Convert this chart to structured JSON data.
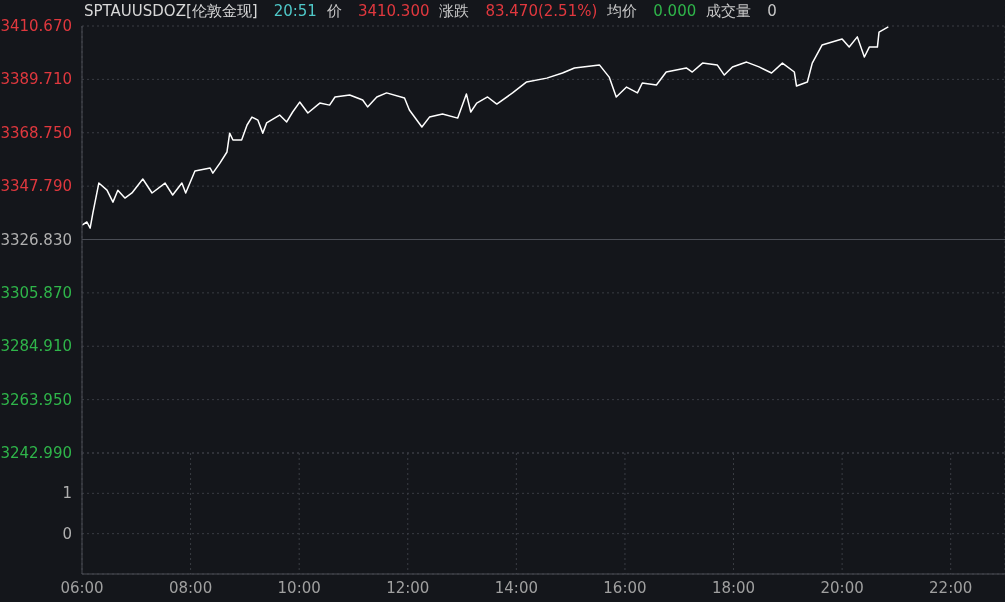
{
  "chart_data": [
    {
      "type": "line",
      "title": "SPTAUUSDOZ[伦敦金现]",
      "annotations": [
        "20:51",
        "价",
        "3410.300",
        "涨跌",
        "83.470(2.51%)",
        "均价",
        "0.000",
        "成交量",
        "0"
      ],
      "x": [
        6.0,
        6.09,
        6.15,
        6.2,
        6.31,
        6.46,
        6.57,
        6.66,
        6.79,
        6.92,
        7.12,
        7.29,
        7.53,
        7.67,
        7.84,
        7.91,
        8.08,
        8.36,
        8.41,
        8.54,
        8.67,
        8.72,
        8.78,
        8.94,
        9.04,
        9.13,
        9.24,
        9.33,
        9.4,
        9.64,
        9.77,
        9.88,
        10.01,
        10.16,
        10.38,
        10.56,
        10.66,
        10.93,
        11.17,
        11.26,
        11.43,
        11.61,
        11.94,
        12.03,
        12.26,
        12.4,
        12.64,
        12.92,
        13.08,
        13.16,
        13.27,
        13.47,
        13.64,
        13.93,
        14.19,
        14.56,
        14.85,
        15.07,
        15.53,
        15.71,
        15.84,
        16.03,
        16.23,
        16.32,
        16.58,
        16.76,
        17.13,
        17.24,
        17.43,
        17.7,
        17.83,
        17.98,
        18.24,
        18.47,
        18.7,
        18.9,
        19.12,
        19.16,
        19.36,
        19.45,
        19.63,
        20.0,
        20.13,
        20.28,
        20.41,
        20.5,
        20.65,
        20.68,
        20.85
      ],
      "series": [
        {
          "color": "#ffffff",
          "values": [
            3332.5,
            3333.7,
            3331.3,
            3337.2,
            3349.0,
            3346.2,
            3341.5,
            3346.2,
            3343.1,
            3345.1,
            3350.6,
            3345.1,
            3349.0,
            3344.3,
            3349.0,
            3345.1,
            3353.7,
            3354.9,
            3352.9,
            3356.8,
            3361.2,
            3368.6,
            3365.9,
            3365.9,
            3371.8,
            3374.9,
            3373.7,
            3368.6,
            3372.6,
            3375.7,
            3373.0,
            3376.9,
            3380.8,
            3376.5,
            3380.4,
            3379.6,
            3382.8,
            3383.6,
            3381.6,
            3378.9,
            3382.8,
            3384.4,
            3382.4,
            3377.7,
            3371.0,
            3374.9,
            3376.1,
            3374.5,
            3384.0,
            3376.9,
            3380.4,
            3382.8,
            3380.0,
            3384.4,
            3388.7,
            3390.2,
            3392.2,
            3394.2,
            3395.4,
            3390.6,
            3382.8,
            3386.7,
            3384.4,
            3388.3,
            3387.5,
            3392.6,
            3394.2,
            3392.6,
            3396.1,
            3395.4,
            3391.4,
            3394.6,
            3396.5,
            3394.6,
            3392.2,
            3396.1,
            3392.6,
            3387.1,
            3388.7,
            3396.1,
            3403.2,
            3405.6,
            3402.4,
            3406.4,
            3398.5,
            3402.4,
            3402.4,
            3408.3,
            3410.3
          ]
        }
      ],
      "xlim": [
        6,
        23
      ],
      "xticks": [
        {
          "value": 6,
          "label": null
        },
        {
          "value": 8,
          "label": null
        },
        {
          "value": 10,
          "label": null
        },
        {
          "value": 12,
          "label": null
        },
        {
          "value": 14,
          "label": null
        },
        {
          "value": 16,
          "label": null
        },
        {
          "value": 18,
          "label": null
        },
        {
          "value": 20,
          "label": null
        },
        {
          "value": 22,
          "label": null
        }
      ],
      "ylim": [
        3242.99,
        3410.67
      ],
      "yticks": [
        {
          "value": 3242.99,
          "label": "3242.990"
        },
        {
          "value": 3263.95,
          "label": "3263.950"
        },
        {
          "value": 3284.91,
          "label": "3284.910"
        },
        {
          "value": 3305.87,
          "label": "3305.870"
        },
        {
          "value": 3326.83,
          "label": "3326.830"
        },
        {
          "value": 3347.79,
          "label": "3347.790"
        },
        {
          "value": 3368.75,
          "label": "3368.750"
        },
        {
          "value": 3389.71,
          "label": "3389.710"
        },
        {
          "value": 3410.67,
          "label": "3410.670"
        }
      ],
      "ref_lines": [
        {
          "axis": "y",
          "value": 3326.83,
          "color": "#4a4d55"
        }
      ],
      "grid": true,
      "tick_labels": "y",
      "line_style": "solid",
      "marker": "none"
    },
    {
      "type": "bar",
      "xlim": [
        6,
        23
      ],
      "xticks": [
        {
          "value": 6,
          "label": "06:00"
        },
        {
          "value": 8,
          "label": "08:00"
        },
        {
          "value": 10,
          "label": "10:00"
        },
        {
          "value": 12,
          "label": "12:00"
        },
        {
          "value": 14,
          "label": "14:00"
        },
        {
          "value": 16,
          "label": "16:00"
        },
        {
          "value": 18,
          "label": "18:00"
        },
        {
          "value": 20,
          "label": "20:00"
        },
        {
          "value": 22,
          "label": "22:00"
        }
      ],
      "ylim": [
        -1,
        2
      ],
      "yticks": [
        0,
        1
      ],
      "grid": true
    }
  ]
}
